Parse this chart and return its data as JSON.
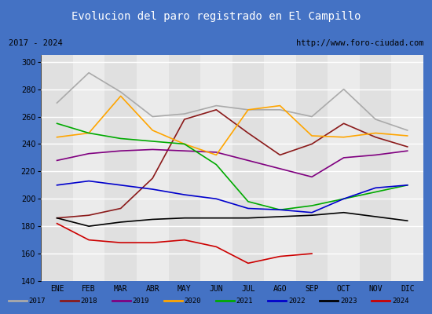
{
  "title": "Evolucion del paro registrado en El Campillo",
  "title_bg": "#4472c4",
  "subtitle_left": "2017 - 2024",
  "subtitle_right": "http://www.foro-ciudad.com",
  "months": [
    "ENE",
    "FEB",
    "MAR",
    "ABR",
    "MAY",
    "JUN",
    "JUL",
    "AGO",
    "SEP",
    "OCT",
    "NOV",
    "DIC"
  ],
  "ylim": [
    140,
    305
  ],
  "yticks": [
    140,
    160,
    180,
    200,
    220,
    240,
    260,
    280,
    300
  ],
  "series": {
    "2017": {
      "color": "#aaaaaa",
      "values": [
        270,
        292,
        278,
        260,
        262,
        268,
        265,
        265,
        260,
        280,
        258,
        250
      ]
    },
    "2018": {
      "color": "#8b1a1a",
      "values": [
        186,
        188,
        193,
        215,
        258,
        265,
        248,
        232,
        240,
        255,
        245,
        238
      ]
    },
    "2019": {
      "color": "#800080",
      "values": [
        228,
        233,
        235,
        236,
        235,
        234,
        228,
        222,
        216,
        230,
        232,
        235
      ]
    },
    "2020": {
      "color": "#ffa500",
      "values": [
        245,
        248,
        275,
        250,
        240,
        232,
        265,
        268,
        246,
        245,
        248,
        246
      ]
    },
    "2021": {
      "color": "#00aa00",
      "values": [
        255,
        248,
        244,
        242,
        240,
        225,
        198,
        192,
        195,
        200,
        205,
        210
      ]
    },
    "2022": {
      "color": "#0000cc",
      "values": [
        210,
        213,
        210,
        207,
        203,
        200,
        193,
        192,
        190,
        200,
        208,
        210
      ]
    },
    "2023": {
      "color": "#000000",
      "values": [
        186,
        180,
        183,
        185,
        186,
        186,
        186,
        187,
        188,
        190,
        187,
        184
      ]
    },
    "2024": {
      "color": "#cc0000",
      "values": [
        182,
        170,
        168,
        168,
        170,
        165,
        153,
        158,
        160,
        null,
        null,
        null
      ]
    }
  }
}
